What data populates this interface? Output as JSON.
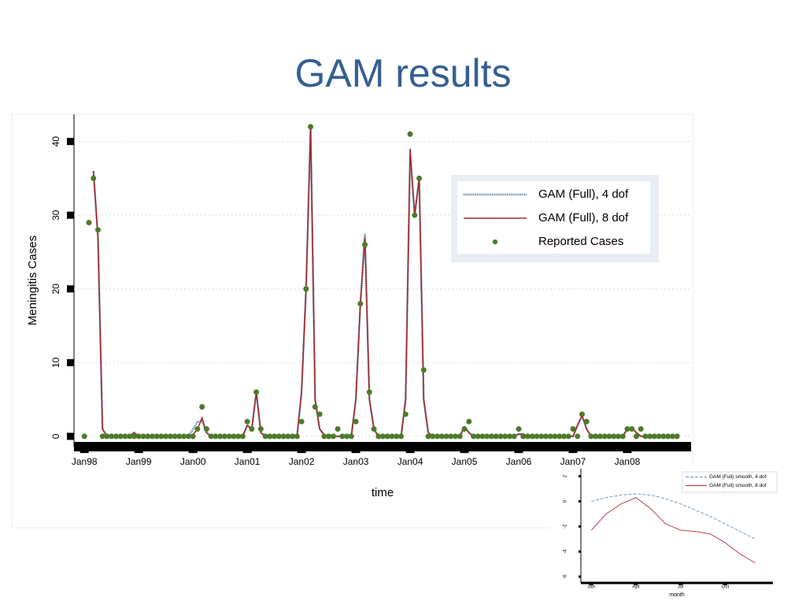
{
  "title": "GAM results",
  "chart_data": [
    {
      "type": "line",
      "xlabel": "time",
      "ylabel": "Meningitis Cases",
      "x": [
        0,
        1,
        2,
        3,
        4,
        5,
        6,
        7,
        8,
        9,
        10,
        11,
        12,
        13,
        14,
        15,
        16,
        17,
        18,
        19,
        20,
        21,
        22,
        23,
        24,
        25,
        26,
        27,
        28,
        29,
        30,
        31,
        32,
        33,
        34,
        35,
        36,
        37,
        38,
        39,
        40,
        41,
        42,
        43,
        44,
        45,
        46,
        47,
        48,
        49,
        50,
        51,
        52,
        53,
        54,
        55,
        56,
        57,
        58,
        59,
        60,
        61,
        62,
        63,
        64,
        65,
        66,
        67,
        68,
        69,
        70,
        71,
        72,
        73,
        74,
        75,
        76,
        77,
        78,
        79,
        80,
        81,
        82,
        83,
        84,
        85,
        86,
        87,
        88,
        89,
        90,
        91,
        92,
        93,
        94,
        95,
        96,
        97,
        98,
        99,
        100,
        101,
        102,
        103,
        104,
        105,
        106,
        107,
        108,
        109,
        110,
        111,
        112,
        113,
        114,
        115,
        116,
        117,
        118,
        119,
        120,
        121,
        122,
        123,
        124,
        125,
        126,
        127,
        128,
        129,
        130,
        131
      ],
      "xlim": [
        -2.3,
        134.1
      ],
      "xticks": [
        {
          "value": 0,
          "label": "Jan98"
        },
        {
          "value": 12,
          "label": "Jan99"
        },
        {
          "value": 24,
          "label": "Jan00"
        },
        {
          "value": 36,
          "label": "Jan01"
        },
        {
          "value": 48,
          "label": "Jan02"
        },
        {
          "value": 60,
          "label": "Jan03"
        },
        {
          "value": 72,
          "label": "Jan04"
        },
        {
          "value": 84,
          "label": "Jan05"
        },
        {
          "value": 96,
          "label": "Jan06"
        },
        {
          "value": 108,
          "label": "Jan07"
        },
        {
          "value": 120,
          "label": "Jan08"
        }
      ],
      "ylim": [
        -1.4,
        43.7
      ],
      "yticks": [
        0,
        10,
        20,
        30,
        40
      ],
      "grid": true,
      "legend": "upper right",
      "series": [
        {
          "name": "GAM (Full), 4 dof",
          "color": "#4a7aa0",
          "dash": "dotted",
          "values": [
            null,
            null,
            36,
            27,
            1,
            0,
            0,
            0,
            0,
            0,
            0,
            0.5,
            0,
            0,
            0,
            0,
            0,
            0,
            0,
            0,
            0,
            0,
            0,
            0,
            1,
            2,
            2,
            0.5,
            0,
            0,
            0,
            0,
            0,
            0,
            0,
            0,
            1.5,
            1,
            6,
            0.5,
            0,
            0,
            0,
            0,
            0,
            0,
            0,
            0,
            6,
            20,
            42,
            5,
            1,
            0.2,
            0,
            0,
            0,
            0,
            0,
            0,
            5,
            18,
            27.5,
            5,
            1,
            0,
            0,
            0,
            0,
            0,
            0,
            5,
            38,
            30,
            35,
            5,
            0.5,
            0,
            0,
            0,
            0,
            0,
            0,
            0,
            1.3,
            0.5,
            0,
            0,
            0,
            0,
            0,
            0,
            0,
            0,
            0,
            0,
            0.3,
            0.3,
            0,
            0,
            0,
            0,
            0,
            0,
            0,
            0,
            0,
            0,
            0,
            1.5,
            2.8,
            1,
            0,
            0,
            0,
            0,
            0,
            0,
            0,
            0,
            1,
            1.2,
            0.5,
            0,
            0,
            0,
            0,
            0,
            0,
            0,
            0,
            0
          ]
        },
        {
          "name": "GAM (Full), 8 dof",
          "color": "#a02c2c",
          "dash": "solid",
          "values": [
            null,
            null,
            36,
            27,
            1,
            0,
            0,
            0,
            0,
            0,
            0,
            0.5,
            0,
            0,
            0,
            0,
            0,
            0,
            0,
            0,
            0,
            0,
            0,
            0,
            0.2,
            1,
            2.5,
            0.5,
            0,
            0,
            0,
            0,
            0,
            0,
            0,
            0,
            1.5,
            1,
            6,
            0.5,
            0,
            0,
            0,
            0,
            0,
            0,
            0,
            0,
            6,
            20,
            42,
            5,
            1,
            0.2,
            0,
            0,
            0,
            0,
            0,
            0,
            5,
            18,
            27,
            5,
            1,
            0,
            0,
            0,
            0,
            0,
            0,
            5,
            39,
            30,
            35,
            5,
            0.5,
            0,
            0,
            0,
            0,
            0,
            0,
            0,
            1.3,
            0.5,
            0,
            0,
            0,
            0,
            0,
            0,
            0,
            0,
            0,
            0,
            0.3,
            0.3,
            0,
            0,
            0,
            0,
            0,
            0,
            0,
            0,
            0,
            0,
            0,
            1.5,
            2.8,
            1,
            0,
            0,
            0,
            0,
            0,
            0,
            0,
            0,
            1,
            1.2,
            0.5,
            0,
            0,
            0,
            0,
            0,
            0,
            0,
            0,
            0
          ]
        },
        {
          "name": "Reported Cases",
          "color": "#4d7a2a",
          "dash": "markers",
          "values": [
            0,
            29,
            35,
            28,
            0,
            0,
            0,
            0,
            0,
            0,
            0,
            0,
            0,
            0,
            0,
            0,
            0,
            0,
            0,
            0,
            0,
            0,
            0,
            0,
            0,
            1,
            4,
            1,
            0,
            0,
            0,
            0,
            0,
            0,
            0,
            0,
            2,
            1,
            6,
            1,
            0,
            0,
            0,
            0,
            0,
            0,
            0,
            0,
            2,
            20,
            42,
            4,
            3,
            0,
            0,
            0,
            1,
            0,
            0,
            0,
            2,
            18,
            26,
            6,
            1,
            0,
            0,
            0,
            0,
            0,
            0,
            3,
            41,
            30,
            35,
            9,
            0,
            0,
            0,
            0,
            0,
            0,
            0,
            0,
            1,
            2,
            0,
            0,
            0,
            0,
            0,
            0,
            0,
            0,
            0,
            0,
            1,
            0,
            0,
            0,
            0,
            0,
            0,
            0,
            0,
            0,
            0,
            0,
            1,
            0,
            3,
            2,
            0,
            0,
            0,
            0,
            0,
            0,
            0,
            0,
            1,
            1,
            0,
            1,
            0,
            0,
            0,
            0,
            0,
            0,
            0,
            0
          ]
        }
      ]
    },
    {
      "type": "line",
      "xlabel": "month",
      "x": [
        1,
        2,
        3,
        4,
        5,
        6,
        7,
        8,
        9,
        10,
        11,
        12
      ],
      "xlim": [
        0.3,
        13.2
      ],
      "xticks": [
        {
          "value": 1,
          "label": "Jan"
        },
        {
          "value": 4,
          "label": "Apr"
        },
        {
          "value": 7,
          "label": "Jul"
        },
        {
          "value": 10,
          "label": "Oct"
        }
      ],
      "ylim": [
        -6.5,
        2.6
      ],
      "yticks": [
        2,
        0,
        -2,
        -4,
        -6
      ],
      "grid": false,
      "legend": "upper right",
      "series": [
        {
          "name": "GAM (Full) smooth, 4 dof",
          "color": "#6a8fb0",
          "dash": "dashed",
          "values": [
            0,
            0.3,
            0.5,
            0.6,
            0.5,
            0.2,
            -0.2,
            -0.7,
            -1.2,
            -1.8,
            -2.4,
            -3.0
          ]
        },
        {
          "name": "GAM (Full) smooth, 8 dof",
          "color": "#b03040",
          "dash": "solid",
          "values": [
            -2.3,
            -1.0,
            -0.2,
            0.3,
            -0.6,
            -1.8,
            -2.3,
            -2.4,
            -2.6,
            -3.3,
            -4.2,
            -4.9
          ]
        }
      ]
    }
  ]
}
